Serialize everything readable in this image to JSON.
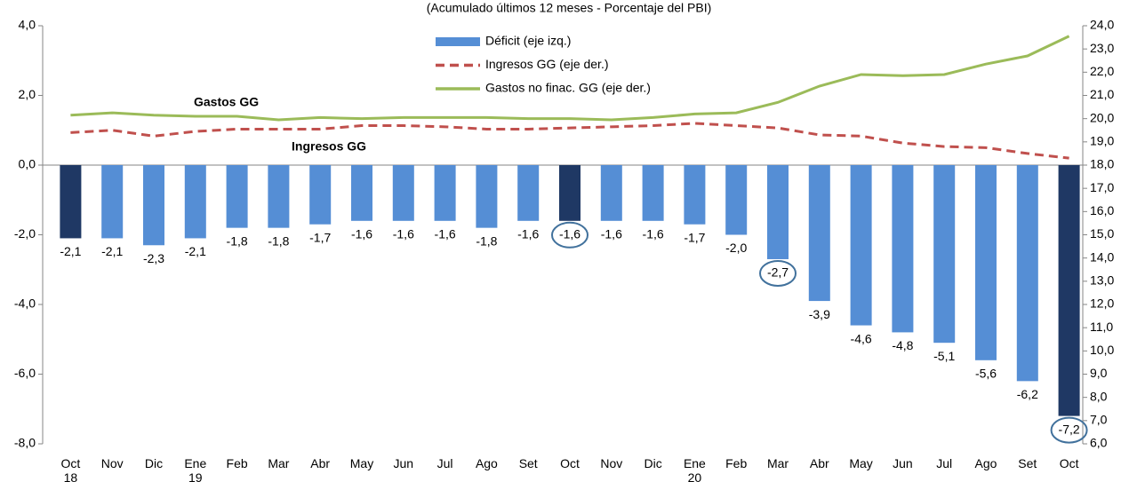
{
  "chart_data": {
    "type": "bar_line",
    "subtitle": "(Acumulado últimos 12 meses - Porcentaje del PBI)",
    "categories": [
      "Oct 18",
      "Nov",
      "Dic",
      "Ene 19",
      "Feb",
      "Mar",
      "Abr",
      "May",
      "Jun",
      "Jul",
      "Ago",
      "Set",
      "Oct",
      "Nov",
      "Dic",
      "Ene 20",
      "Feb",
      "Mar",
      "Abr",
      "May",
      "Jun",
      "Jul",
      "Ago",
      "Set",
      "Oct"
    ],
    "series": [
      {
        "name": "Déficit (eje izq.)",
        "color": "#558ed5",
        "bar_colors": [
          "#1f3864",
          "#558ed5",
          "#558ed5",
          "#558ed5",
          "#558ed5",
          "#558ed5",
          "#558ed5",
          "#558ed5",
          "#558ed5",
          "#558ed5",
          "#558ed5",
          "#558ed5",
          "#1f3864",
          "#558ed5",
          "#558ed5",
          "#558ed5",
          "#558ed5",
          "#558ed5",
          "#558ed5",
          "#558ed5",
          "#558ed5",
          "#558ed5",
          "#558ed5",
          "#558ed5",
          "#1f3864"
        ],
        "values": [
          -2.1,
          -2.1,
          -2.3,
          -2.1,
          -1.8,
          -1.8,
          -1.7,
          -1.6,
          -1.6,
          -1.6,
          -1.8,
          -1.6,
          -1.6,
          -1.6,
          -1.6,
          -1.7,
          -2.0,
          -2.7,
          -3.9,
          -4.6,
          -4.8,
          -5.1,
          -5.6,
          -6.2,
          -7.2
        ],
        "value_labels": [
          "-2,1",
          "-2,1",
          "-2,3",
          "-2,1",
          "-1,8",
          "-1,8",
          "-1,7",
          "-1,6",
          "-1,6",
          "-1,6",
          "-1,8",
          "-1,6",
          "-1,6",
          "-1,6",
          "-1,6",
          "-1,7",
          "-2,0",
          "-2,7",
          "-3,9",
          "-4,6",
          "-4,8",
          "-5,1",
          "-5,6",
          "-6,2",
          "-7,2"
        ]
      },
      {
        "name": "Ingresos GG (eje der.)",
        "color": "#c0504d",
        "axis": "y2",
        "dash": true,
        "values": [
          19.4,
          19.5,
          19.25,
          19.45,
          19.55,
          19.55,
          19.55,
          19.7,
          19.7,
          19.65,
          19.55,
          19.55,
          19.6,
          19.65,
          19.7,
          19.8,
          19.7,
          19.6,
          19.3,
          19.25,
          18.95,
          18.8,
          18.75,
          18.5,
          18.3
        ]
      },
      {
        "name": "Gastos no finac. GG (eje der.)",
        "color": "#9bbb59",
        "axis": "y2",
        "values": [
          20.15,
          20.25,
          20.15,
          20.1,
          20.1,
          19.95,
          20.05,
          20.0,
          20.05,
          20.05,
          20.05,
          20.0,
          20.0,
          19.95,
          20.05,
          20.2,
          20.25,
          20.7,
          21.4,
          21.9,
          21.85,
          21.9,
          22.35,
          22.7,
          23.55
        ]
      }
    ],
    "annotations": [
      "Gastos GG",
      "Ingresos GG"
    ],
    "ylim": [
      -8,
      4
    ],
    "yticks": [
      {
        "value": -8,
        "label": "-8,0"
      },
      {
        "value": -6,
        "label": "-6,0"
      },
      {
        "value": -4,
        "label": "-4,0"
      },
      {
        "value": -2,
        "label": "-2,0"
      },
      {
        "value": 0,
        "label": "0,0"
      },
      {
        "value": 2,
        "label": "2,0"
      },
      {
        "value": 4,
        "label": "4,0"
      }
    ],
    "y2lim": [
      6,
      24
    ],
    "y2ticks": [
      {
        "value": 6,
        "label": "6,0"
      },
      {
        "value": 7,
        "label": "7,0"
      },
      {
        "value": 8,
        "label": "8,0"
      },
      {
        "value": 9,
        "label": "9,0"
      },
      {
        "value": 10,
        "label": "10,0"
      },
      {
        "value": 11,
        "label": "11,0"
      },
      {
        "value": 12,
        "label": "12,0"
      },
      {
        "value": 13,
        "label": "13,0"
      },
      {
        "value": 14,
        "label": "14,0"
      },
      {
        "value": 15,
        "label": "15,0"
      },
      {
        "value": 16,
        "label": "16,0"
      },
      {
        "value": 17,
        "label": "17,0"
      },
      {
        "value": 18,
        "label": "18,0"
      },
      {
        "value": 19,
        "label": "19,0"
      },
      {
        "value": 20,
        "label": "20,0"
      },
      {
        "value": 21,
        "label": "21,0"
      },
      {
        "value": 22,
        "label": "22,0"
      },
      {
        "value": 23,
        "label": "23,0"
      },
      {
        "value": 24,
        "label": "24,0"
      }
    ],
    "highlighted": [
      12,
      17,
      24
    ]
  }
}
